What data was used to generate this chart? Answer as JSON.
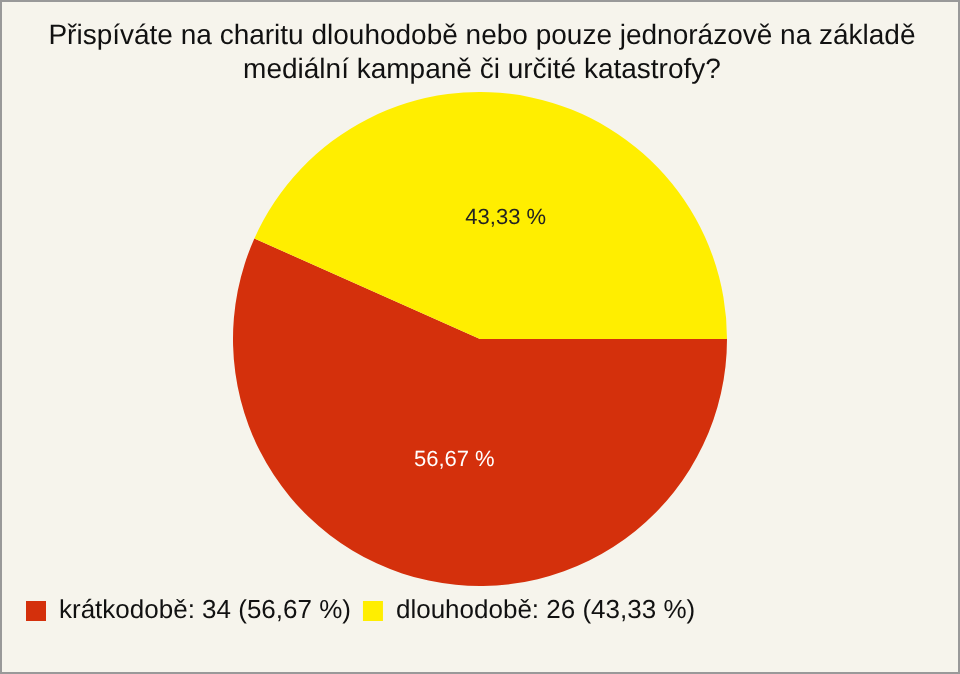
{
  "chart_data": {
    "type": "pie",
    "title": "Přispíváte na charitu dlouhodobě nebo pouze jednorázově na základě mediální kampaně či určité katastrofy?",
    "categories": [
      "krátkodobě: 34 (56,67 %)",
      "dlouhodobě: 26 (43,33 %)"
    ],
    "values": [
      56.67,
      43.33
    ],
    "colors": [
      "#d4300c",
      "#ffee00"
    ],
    "value_labels": [
      "56,67 %",
      "43,33 %"
    ],
    "legend": "bottom left"
  }
}
